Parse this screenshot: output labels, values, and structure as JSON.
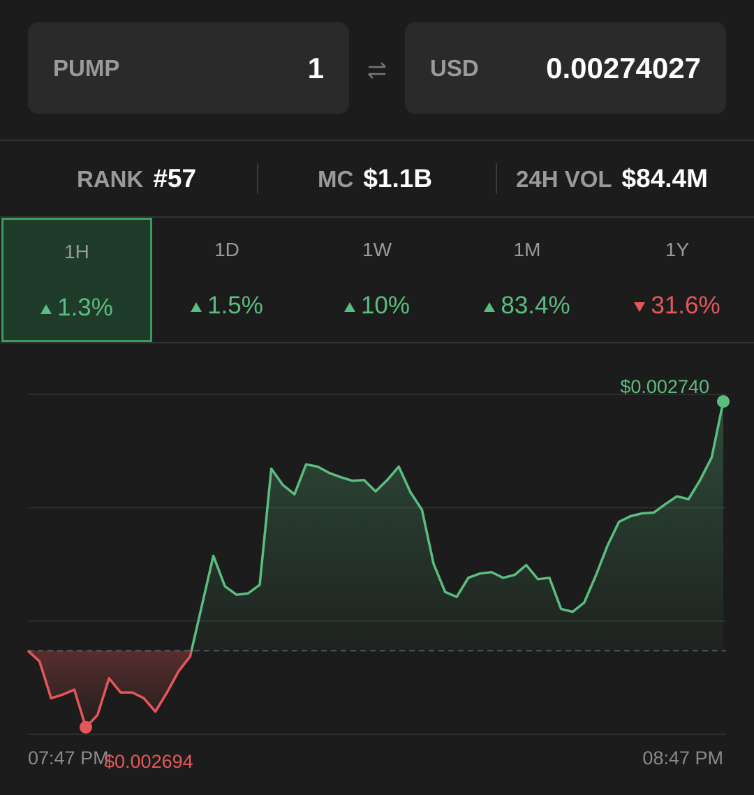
{
  "converter": {
    "from": {
      "symbol": "PUMP",
      "amount": "1"
    },
    "to": {
      "symbol": "USD",
      "amount": "0.00274027"
    }
  },
  "stats": [
    {
      "label": "RANK",
      "value": "#57"
    },
    {
      "label": "MC",
      "value": "$1.1B"
    },
    {
      "label": "24H VOL",
      "value": "$84.4M"
    }
  ],
  "periods": [
    {
      "label": "1H",
      "change": "1.3%",
      "direction": "up",
      "selected": true
    },
    {
      "label": "1D",
      "change": "1.5%",
      "direction": "up",
      "selected": false
    },
    {
      "label": "1W",
      "change": "10%",
      "direction": "up",
      "selected": false
    },
    {
      "label": "1M",
      "change": "83.4%",
      "direction": "up",
      "selected": false
    },
    {
      "label": "1Y",
      "change": "31.6%",
      "direction": "down",
      "selected": false
    }
  ],
  "chart_data": {
    "type": "line",
    "categories": [
      "07:47 PM",
      null,
      null,
      null,
      null,
      null,
      null,
      null,
      null,
      null,
      null,
      null,
      null,
      null,
      null,
      null,
      null,
      null,
      null,
      null,
      null,
      null,
      null,
      null,
      null,
      null,
      null,
      null,
      null,
      null,
      null,
      null,
      null,
      null,
      null,
      null,
      null,
      null,
      null,
      null,
      null,
      null,
      null,
      null,
      null,
      null,
      null,
      null,
      null,
      null,
      null,
      null,
      null,
      null,
      null,
      null,
      null,
      null,
      null,
      null,
      "08:47 PM"
    ],
    "values": [
      0.0027048,
      0.0027033,
      0.0026981,
      0.0026986,
      0.0026993,
      0.002694,
      0.0026957,
      0.0027009,
      0.0026989,
      0.0026989,
      0.0026981,
      0.0026962,
      0.0026989,
      0.0027019,
      0.002704,
      0.0027111,
      0.0027182,
      0.0027139,
      0.0027127,
      0.0027129,
      0.0027141,
      0.0027305,
      0.0027282,
      0.0027269,
      0.0027311,
      0.0027308,
      0.0027299,
      0.0027293,
      0.0027288,
      0.0027289,
      0.0027273,
      0.0027289,
      0.0027308,
      0.0027272,
      0.0027247,
      0.0027171,
      0.0027131,
      0.0027124,
      0.0027151,
      0.0027157,
      0.0027159,
      0.0027151,
      0.0027155,
      0.0027169,
      0.0027149,
      0.0027151,
      0.0027107,
      0.0027103,
      0.0027116,
      0.0027154,
      0.0027196,
      0.002723,
      0.0027238,
      0.0027242,
      0.0027243,
      0.0027255,
      0.0027266,
      0.0027262,
      0.0027289,
      0.0027321,
      0.00274
    ],
    "value_labels": [
      null,
      null,
      null,
      null,
      null,
      "$0.002694",
      null,
      null,
      null,
      null,
      null,
      null,
      null,
      null,
      null,
      null,
      null,
      null,
      null,
      null,
      null,
      null,
      null,
      null,
      null,
      null,
      null,
      null,
      null,
      null,
      null,
      null,
      null,
      null,
      null,
      null,
      null,
      null,
      null,
      null,
      null,
      null,
      null,
      null,
      null,
      null,
      null,
      null,
      null,
      null,
      null,
      null,
      null,
      null,
      null,
      null,
      null,
      null,
      null,
      null,
      "$0.002740"
    ],
    "reference_line": 0.0027048,
    "ylim": [
      0.002693,
      0.002741
    ],
    "grid": true,
    "colors": {
      "up": "#5bbd7f",
      "down": "#e5575a"
    }
  }
}
